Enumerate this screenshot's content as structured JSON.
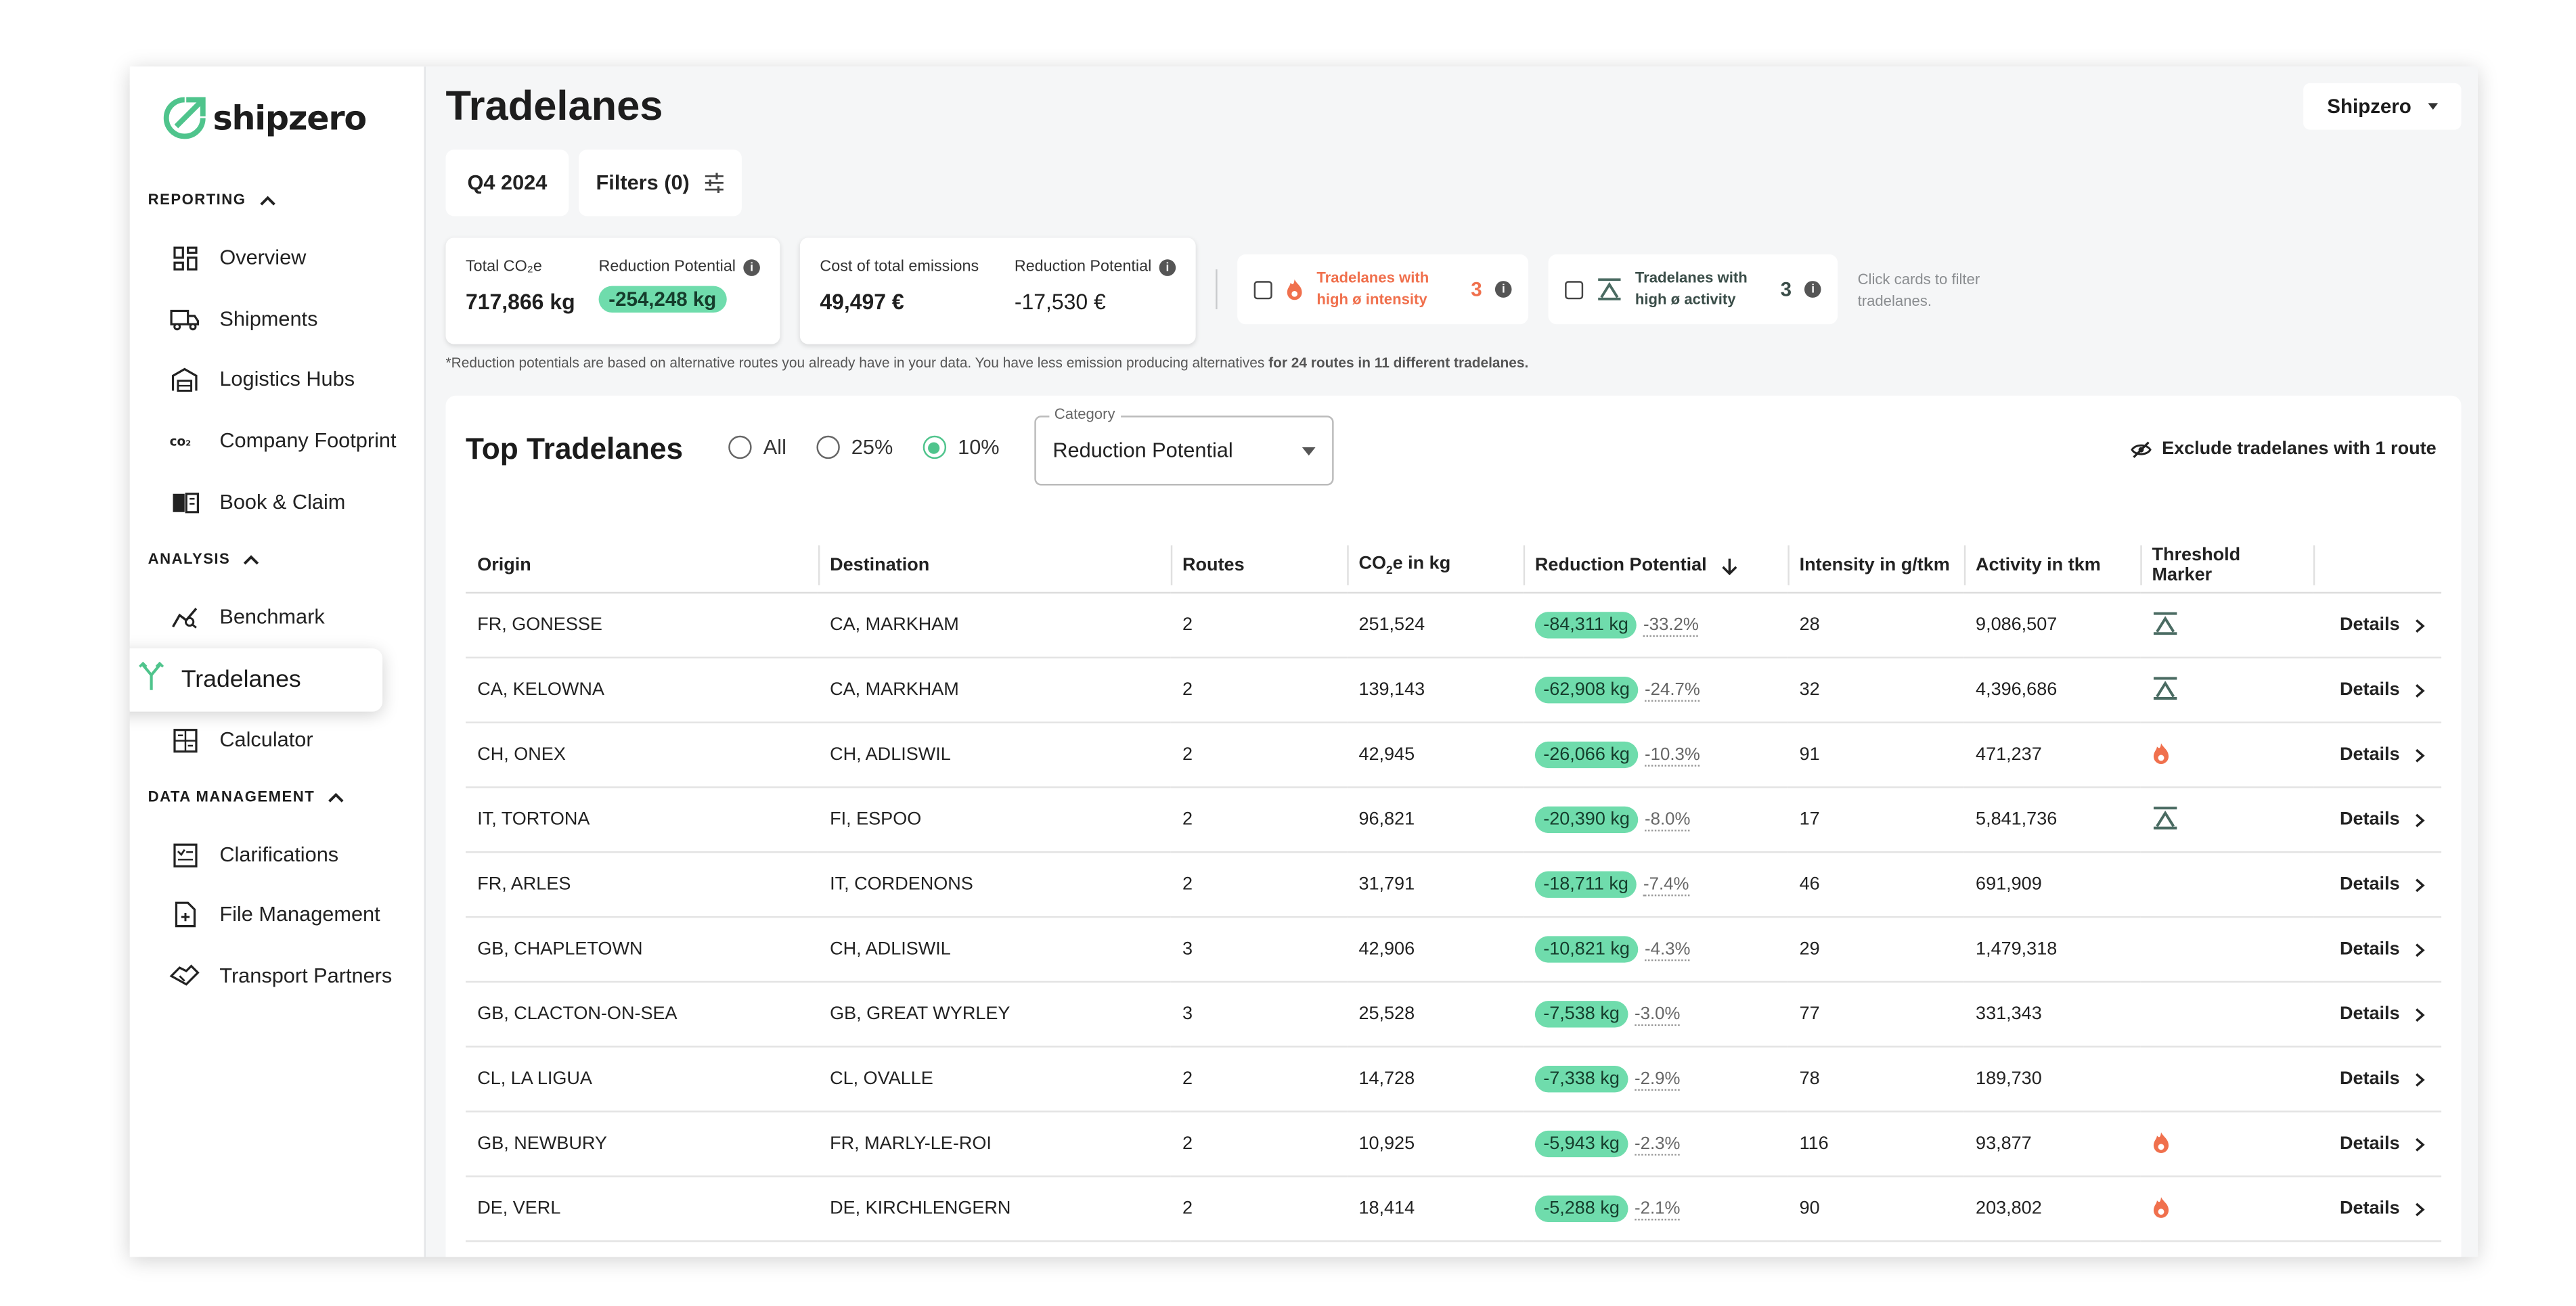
{
  "brand": {
    "name": "shipzero",
    "accent": "#4fc48c"
  },
  "sidebar": {
    "sections": [
      {
        "label": "REPORTING",
        "items": [
          {
            "label": "Overview",
            "icon": "dashboard-icon"
          },
          {
            "label": "Shipments",
            "icon": "truck-icon"
          },
          {
            "label": "Logistics Hubs",
            "icon": "warehouse-icon"
          },
          {
            "label": "Company Footprint",
            "icon": "co2-icon"
          },
          {
            "label": "Book & Claim",
            "icon": "book-icon"
          }
        ]
      },
      {
        "label": "ANALYSIS",
        "items": [
          {
            "label": "Benchmark",
            "icon": "benchmark-icon"
          },
          {
            "label": "Tradelanes",
            "icon": "tradelanes-icon",
            "active": true
          },
          {
            "label": "Calculator",
            "icon": "calculator-icon"
          }
        ]
      },
      {
        "label": "DATA MANAGEMENT",
        "items": [
          {
            "label": "Clarifications",
            "icon": "clarifications-icon"
          },
          {
            "label": "File Management",
            "icon": "file-upload-icon"
          },
          {
            "label": "Transport Partners",
            "icon": "handshake-icon"
          }
        ]
      }
    ]
  },
  "header": {
    "title": "Tradelanes",
    "company": "Shipzero"
  },
  "toolbar": {
    "period": "Q4 2024",
    "filters": "Filters (0)"
  },
  "kpis": {
    "total_co2_label": "Total CO₂e",
    "total_co2_value": "717,866 kg",
    "reduction_label": "Reduction Potential",
    "reduction_value": "-254,248 kg",
    "cost_label": "Cost of total emissions",
    "cost_value": "49,497 €",
    "cost_reduction_label": "Reduction Potential",
    "cost_reduction_value": "-17,530 €"
  },
  "filter_cards": {
    "intensity_text_1": "Tradelanes with",
    "intensity_text_2": "high ø intensity",
    "intensity_count": "3",
    "activity_text_1": "Tradelanes with",
    "activity_text_2": "high ø activity",
    "activity_count": "3",
    "hint_1": "Click cards to filter",
    "hint_2": "tradelanes."
  },
  "footnote": {
    "text": "*Reduction potentials are based on alternative routes you already have in your data. You have less emission producing alternatives ",
    "bold": "for 24 routes in 11 different tradelanes."
  },
  "table_panel": {
    "title": "Top Tradelanes",
    "radios": [
      {
        "label": "All"
      },
      {
        "label": "25%"
      },
      {
        "label": "10%",
        "selected": true
      }
    ],
    "category_label": "Category",
    "category_value": "Reduction Potential",
    "exclude_label": "Exclude tradelanes with 1 route",
    "columns": {
      "origin": "Origin",
      "destination": "Destination",
      "routes": "Routes",
      "co2_prefix": "CO",
      "co2_suffix": "e in kg",
      "reduction": "Reduction Potential",
      "intensity": "Intensity in g/tkm",
      "activity": "Activity in tkm",
      "threshold": "Threshold Marker"
    },
    "details_label": "Details",
    "rows": [
      {
        "origin": "FR, GONESSE",
        "destination": "CA, MARKHAM",
        "routes": "2",
        "co2": "251,524",
        "reduction": "-84,311 kg",
        "pct": "-33.2%",
        "intensity": "28",
        "activity": "9,086,507",
        "marker": "activity"
      },
      {
        "origin": "CA, KELOWNA",
        "destination": "CA, MARKHAM",
        "routes": "2",
        "co2": "139,143",
        "reduction": "-62,908 kg",
        "pct": "-24.7%",
        "intensity": "32",
        "activity": "4,396,686",
        "marker": "activity"
      },
      {
        "origin": "CH, ONEX",
        "destination": "CH, ADLISWIL",
        "routes": "2",
        "co2": "42,945",
        "reduction": "-26,066 kg",
        "pct": "-10.3%",
        "intensity": "91",
        "activity": "471,237",
        "marker": "intensity"
      },
      {
        "origin": "IT, TORTONA",
        "destination": "FI, ESPOO",
        "routes": "2",
        "co2": "96,821",
        "reduction": "-20,390 kg",
        "pct": "-8.0%",
        "intensity": "17",
        "activity": "5,841,736",
        "marker": "activity"
      },
      {
        "origin": "FR, ARLES",
        "destination": "IT, CORDENONS",
        "routes": "2",
        "co2": "31,791",
        "reduction": "-18,711 kg",
        "pct": "-7.4%",
        "intensity": "46",
        "activity": "691,909",
        "marker": ""
      },
      {
        "origin": "GB, CHAPLETOWN",
        "destination": "CH, ADLISWIL",
        "routes": "3",
        "co2": "42,906",
        "reduction": "-10,821 kg",
        "pct": "-4.3%",
        "intensity": "29",
        "activity": "1,479,318",
        "marker": ""
      },
      {
        "origin": "GB, CLACTON-ON-SEA",
        "destination": "GB, GREAT WYRLEY",
        "routes": "3",
        "co2": "25,528",
        "reduction": "-7,538 kg",
        "pct": "-3.0%",
        "intensity": "77",
        "activity": "331,343",
        "marker": ""
      },
      {
        "origin": "CL, LA LIGUA",
        "destination": "CL, OVALLE",
        "routes": "2",
        "co2": "14,728",
        "reduction": "-7,338 kg",
        "pct": "-2.9%",
        "intensity": "78",
        "activity": "189,730",
        "marker": ""
      },
      {
        "origin": "GB, NEWBURY",
        "destination": "FR, MARLY-LE-ROI",
        "routes": "2",
        "co2": "10,925",
        "reduction": "-5,943 kg",
        "pct": "-2.3%",
        "intensity": "116",
        "activity": "93,877",
        "marker": "intensity"
      },
      {
        "origin": "DE, VERL",
        "destination": "DE, KIRCHLENGERN",
        "routes": "2",
        "co2": "18,414",
        "reduction": "-5,288 kg",
        "pct": "-2.1%",
        "intensity": "90",
        "activity": "203,802",
        "marker": "intensity"
      }
    ]
  }
}
